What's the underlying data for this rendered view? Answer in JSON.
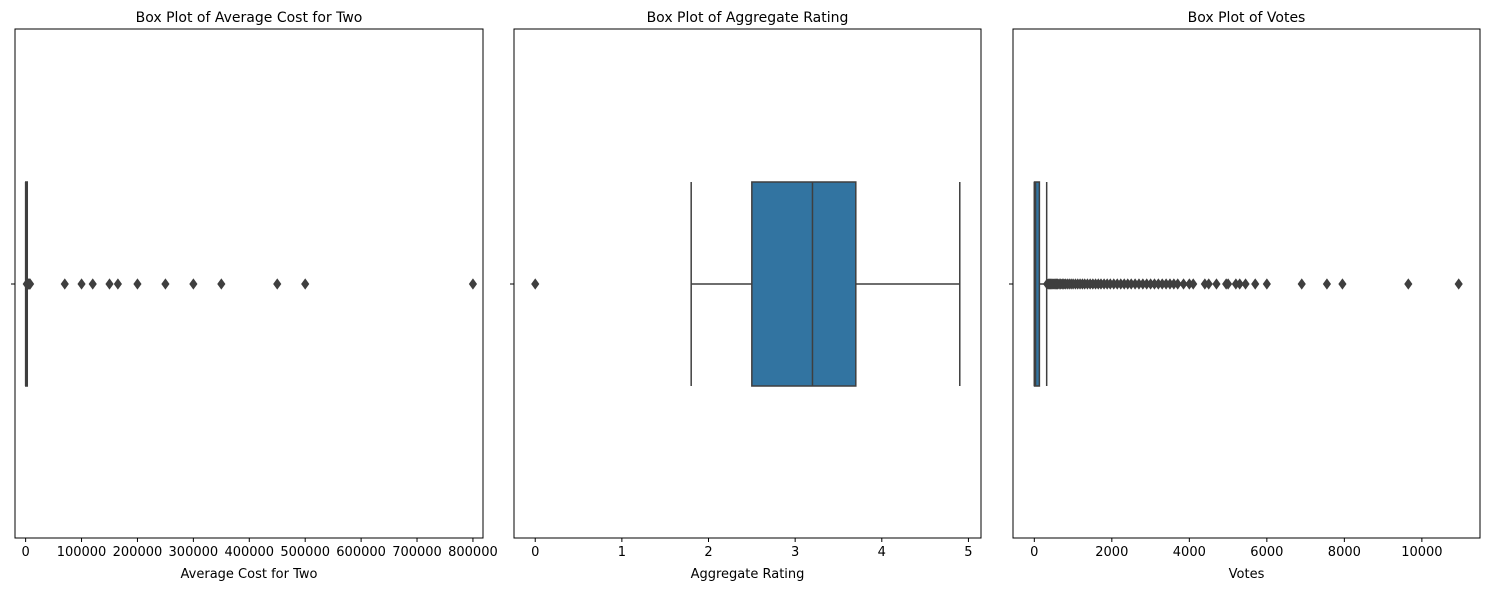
{
  "chart_data": [
    {
      "type": "box",
      "title": "Box Plot of Average Cost for Two",
      "xlabel": "Average Cost for Two",
      "xlim": [
        -19000,
        818000
      ],
      "xticks": [
        0,
        100000,
        200000,
        300000,
        400000,
        500000,
        600000,
        700000,
        800000
      ],
      "xtick_labels": [
        "0",
        "100000",
        "200000",
        "300000",
        "400000",
        "500000",
        "600000",
        "700000",
        "800000"
      ],
      "ytick_labels": [
        ""
      ],
      "box_color": "#3274a1",
      "box": {
        "q1": 250,
        "median": 400,
        "q3": 700,
        "whisker_low": 0,
        "whisker_high": 1350
      },
      "outliers": [
        2000,
        3000,
        4000,
        5000,
        6000,
        7000,
        8000,
        70000,
        100000,
        120000,
        150000,
        165000,
        200000,
        250000,
        300000,
        350000,
        450000,
        500000,
        800000
      ]
    },
    {
      "type": "box",
      "title": "Box Plot of Aggregate Rating",
      "xlabel": "Aggregate Rating",
      "xlim": [
        -0.245,
        5.145
      ],
      "xticks": [
        0,
        1,
        2,
        3,
        4,
        5
      ],
      "xtick_labels": [
        "0",
        "1",
        "2",
        "3",
        "4",
        "5"
      ],
      "ytick_labels": [
        ""
      ],
      "box_color": "#3274a1",
      "box": {
        "q1": 2.5,
        "median": 3.2,
        "q3": 3.7,
        "whisker_low": 1.8,
        "whisker_high": 4.9
      },
      "outliers": [
        0
      ]
    },
    {
      "type": "box",
      "title": "Box Plot of Votes",
      "xlabel": "Votes",
      "xlim": [
        -550,
        11500
      ],
      "xticks": [
        0,
        2000,
        4000,
        6000,
        8000,
        10000
      ],
      "xtick_labels": [
        "0",
        "2000",
        "4000",
        "6000",
        "8000",
        "10000"
      ],
      "ytick_labels": [
        ""
      ],
      "box_color": "#3274a1",
      "box": {
        "q1": 5,
        "median": 31,
        "q3": 131,
        "whisker_low": 0,
        "whisker_high": 319
      },
      "outliers": [
        330,
        360,
        390,
        420,
        450,
        480,
        510,
        540,
        570,
        600,
        640,
        680,
        720,
        760,
        800,
        850,
        900,
        950,
        1000,
        1060,
        1120,
        1180,
        1240,
        1300,
        1370,
        1440,
        1510,
        1580,
        1650,
        1720,
        1800,
        1880,
        1960,
        2050,
        2140,
        2230,
        2320,
        2410,
        2500,
        2600,
        2700,
        2800,
        2900,
        3000,
        3100,
        3200,
        3300,
        3400,
        3500,
        3600,
        3700,
        3850,
        4000,
        4100,
        4400,
        4500,
        4700,
        4950,
        5000,
        5200,
        5300,
        5450,
        5700,
        6000,
        6900,
        7550,
        7950,
        9650,
        10950
      ]
    }
  ]
}
